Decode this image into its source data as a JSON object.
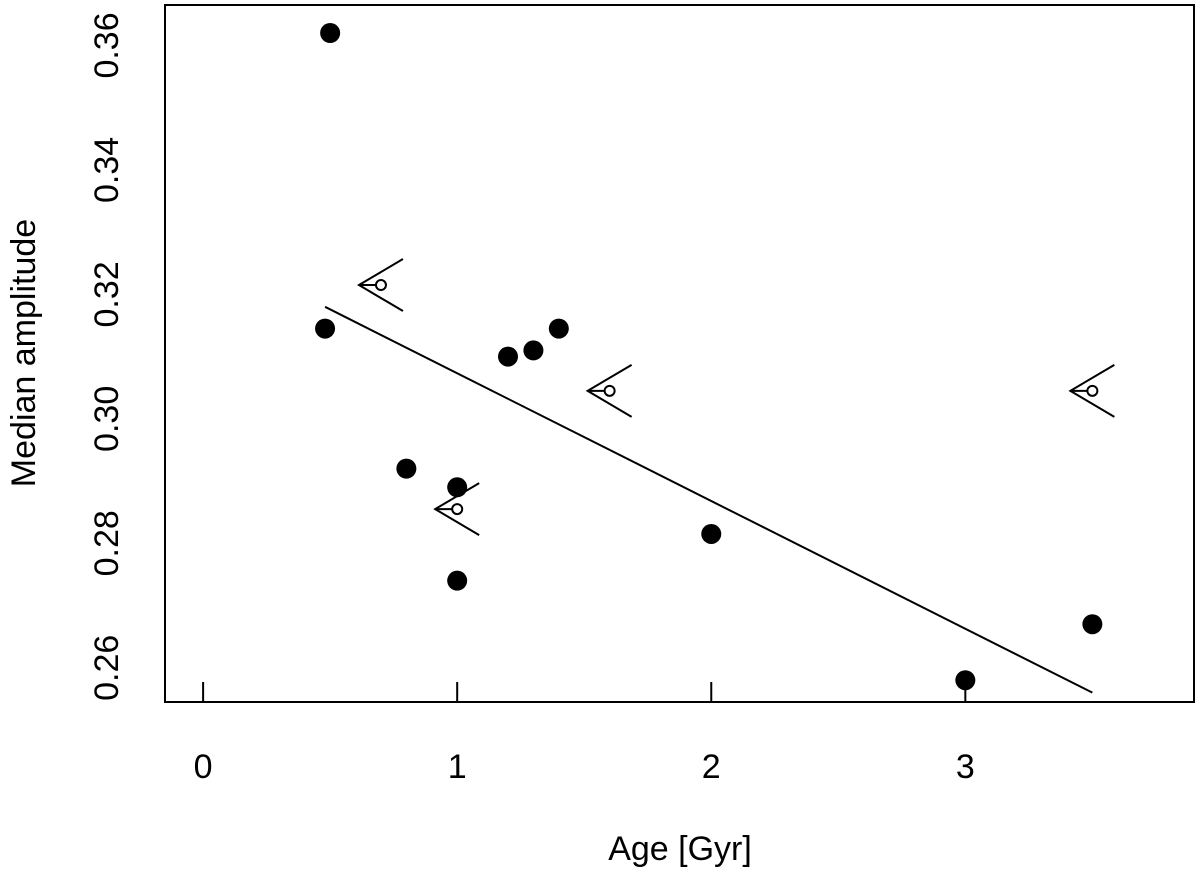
{
  "chart_data": {
    "type": "scatter",
    "xlabel": "Age [Gyr]",
    "ylabel": "Median amplitude",
    "xlim": [
      -0.15,
      3.9
    ],
    "ylim": [
      0.2545,
      0.3665
    ],
    "x_ticks": [
      0,
      1,
      2,
      3
    ],
    "y_ticks": [
      0.26,
      0.28,
      0.3,
      0.32,
      0.34,
      0.36
    ],
    "x_tick_labels": [
      "0",
      "1",
      "2",
      "3"
    ],
    "y_tick_labels": [
      "0.26",
      "0.28",
      "0.30",
      "0.32",
      "0.34",
      "0.36"
    ],
    "grid": false,
    "legend": "none",
    "measurements": [
      {
        "x": 0.5,
        "y": 0.362
      },
      {
        "x": 0.48,
        "y": 0.3145
      },
      {
        "x": 0.8,
        "y": 0.292
      },
      {
        "x": 1.0,
        "y": 0.289
      },
      {
        "x": 1.0,
        "y": 0.274
      },
      {
        "x": 1.2,
        "y": 0.31
      },
      {
        "x": 1.3,
        "y": 0.311
      },
      {
        "x": 1.4,
        "y": 0.3145
      },
      {
        "x": 2.0,
        "y": 0.2815
      },
      {
        "x": 3.0,
        "y": 0.258
      },
      {
        "x": 3.5,
        "y": 0.267
      }
    ],
    "upper_limits_on_age": [
      {
        "x": 0.7,
        "y": 0.3215
      },
      {
        "x": 1.0,
        "y": 0.2855
      },
      {
        "x": 1.6,
        "y": 0.3045
      },
      {
        "x": 3.5,
        "y": 0.3045
      }
    ],
    "fit_line": {
      "x": [
        0.48,
        3.5
      ],
      "y": [
        0.318,
        0.256
      ]
    }
  }
}
